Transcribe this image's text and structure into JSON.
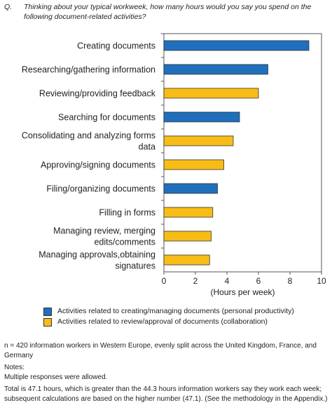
{
  "question": {
    "prefix": "Q.",
    "text": "Thinking about your typical workweek, how many hours would you say you spend on the following document-related activities?"
  },
  "colors": {
    "personal": "#1f6fbd",
    "collaboration": "#f7bd16",
    "axis": "#555555"
  },
  "chart_data": {
    "type": "bar",
    "orientation": "horizontal",
    "xlabel": "(Hours per week)",
    "xlim": [
      0,
      10
    ],
    "xticks": [
      "0",
      "2",
      "4",
      "6",
      "8",
      "10"
    ],
    "grid": false,
    "categories": [
      "Creating documents",
      "Researching/gathering information",
      "Reviewing/providing feedback",
      "Searching for documents",
      "Consolidating and analyzing forms data",
      "Approving/signing documents",
      "Filing/organizing documents",
      "Filling in forms",
      "Managing review, merging edits/comments",
      "Managing approvals,obtaining signatures"
    ],
    "category_lines": [
      [
        "Creating documents"
      ],
      [
        "Researching/gathering information"
      ],
      [
        "Reviewing/providing feedback"
      ],
      [
        "Searching for documents"
      ],
      [
        "Consolidating and analyzing forms",
        "data"
      ],
      [
        "Approving/signing documents"
      ],
      [
        "Filing/organizing documents"
      ],
      [
        "Filling in forms"
      ],
      [
        "Managing review, merging",
        "edits/comments"
      ],
      [
        "Managing approvals,obtaining",
        "signatures"
      ]
    ],
    "values": [
      9.2,
      6.6,
      6.0,
      4.8,
      4.4,
      3.8,
      3.4,
      3.1,
      3.0,
      2.9
    ],
    "groups": [
      "personal",
      "personal",
      "collaboration",
      "personal",
      "collaboration",
      "collaboration",
      "personal",
      "collaboration",
      "collaboration",
      "collaboration"
    ],
    "legend": [
      {
        "key": "personal",
        "label": "Activities related to creating/managing documents (personal productivity)"
      },
      {
        "key": "collaboration",
        "label": "Activities related to review/approval of documents (collaboration)"
      }
    ],
    "legend_position": "bottom"
  },
  "notes": {
    "sample": "n = 420 information workers in Western Europe, evenly split across the United Kingdom, France, and Germany",
    "heading": "Notes:",
    "note1": "Multiple responses were allowed.",
    "note2": "Total is 47.1 hours, which is greater than the 44.3 hours information workers say they work each week; subsequent calculations are based on the higher number (47.1). (See the methodology in the Appendix.)"
  }
}
